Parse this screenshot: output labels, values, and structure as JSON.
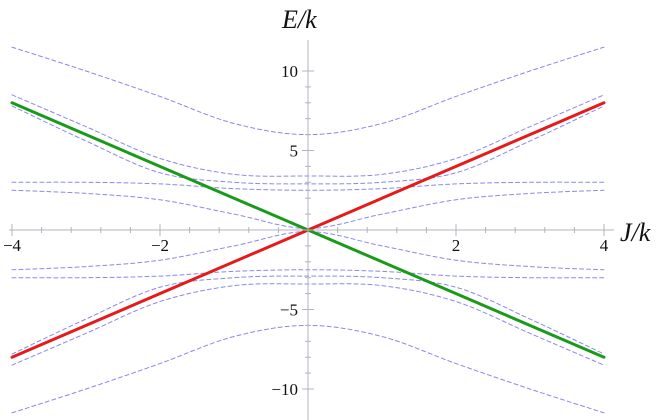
{
  "chart_data": {
    "type": "line",
    "xlabel": "J/k",
    "ylabel": "E/k",
    "xlim": [
      -4,
      4
    ],
    "ylim": [
      -12,
      12
    ],
    "x_ticks": [
      -4,
      -2,
      2,
      4
    ],
    "x_tick_labels": [
      "−4",
      "−2",
      "2",
      "4"
    ],
    "y_ticks": [
      -10,
      -5,
      5,
      10
    ],
    "y_tick_labels": [
      "−10",
      "−5",
      "5",
      "10"
    ],
    "grid": false,
    "legend": "none",
    "series": [
      {
        "style": "solid",
        "color": "#e51a1a",
        "x": [
          -4,
          4
        ],
        "y": [
          -8,
          8
        ]
      },
      {
        "style": "solid",
        "color": "#1a9a1a",
        "x": [
          -4,
          4
        ],
        "y": [
          8,
          -8
        ]
      },
      {
        "style": "dashed",
        "color": "#8888ee",
        "x": [
          -4,
          -3,
          -2,
          -1,
          0,
          1,
          2,
          3,
          4
        ],
        "y": [
          11.5,
          10.0,
          8.4,
          6.7,
          6.0,
          6.7,
          8.4,
          10.0,
          11.5
        ]
      },
      {
        "style": "dashed",
        "color": "#8888ee",
        "x": [
          -4,
          -3,
          -2,
          -1,
          0,
          1,
          2,
          3,
          4
        ],
        "y": [
          -11.5,
          -10.0,
          -8.4,
          -6.7,
          -6.0,
          -6.7,
          -8.4,
          -10.0,
          -11.5
        ]
      },
      {
        "style": "dashed",
        "color": "#8888ee",
        "x": [
          -4,
          -3,
          -2,
          -1,
          0,
          1,
          2,
          3,
          4
        ],
        "y": [
          8.5,
          6.5,
          4.5,
          3.5,
          3.4,
          3.5,
          4.5,
          6.5,
          8.5
        ]
      },
      {
        "style": "dashed",
        "color": "#8888ee",
        "x": [
          -4,
          -3,
          -2,
          -1,
          0,
          1,
          2,
          3,
          4
        ],
        "y": [
          -8.5,
          -6.5,
          -4.5,
          -3.5,
          -3.4,
          -3.5,
          -4.5,
          -6.5,
          -8.5
        ]
      },
      {
        "style": "dashed",
        "color": "#8888ee",
        "x": [
          -4,
          -3,
          -2,
          -1,
          0,
          1,
          2,
          3,
          4
        ],
        "y": [
          7.8,
          5.6,
          3.6,
          3.0,
          2.9,
          3.0,
          3.6,
          5.6,
          7.8
        ]
      },
      {
        "style": "dashed",
        "color": "#8888ee",
        "x": [
          -4,
          -3,
          -2,
          -1,
          0,
          1,
          2,
          3,
          4
        ],
        "y": [
          -7.8,
          -5.6,
          -3.6,
          -3.0,
          -2.9,
          -3.0,
          -3.6,
          -5.6,
          -7.8
        ]
      },
      {
        "style": "dashed",
        "color": "#8888ee",
        "x": [
          -4,
          -3,
          -2,
          -1,
          0,
          1,
          2,
          3,
          4
        ],
        "y": [
          3.0,
          3.0,
          2.9,
          2.6,
          2.5,
          2.6,
          2.9,
          3.0,
          3.0
        ]
      },
      {
        "style": "dashed",
        "color": "#8888ee",
        "x": [
          -4,
          -3,
          -2,
          -1,
          0,
          1,
          2,
          3,
          4
        ],
        "y": [
          -3.0,
          -3.0,
          -2.9,
          -2.6,
          -2.5,
          -2.6,
          -2.9,
          -3.0,
          -3.0
        ]
      },
      {
        "style": "dashed",
        "color": "#8888ee",
        "x": [
          -4,
          -3,
          -2,
          -1,
          0,
          1,
          2,
          3,
          4
        ],
        "y": [
          2.5,
          2.3,
          1.9,
          1.0,
          0.1,
          1.0,
          1.9,
          2.3,
          2.5
        ]
      },
      {
        "style": "dashed",
        "color": "#8888ee",
        "x": [
          -4,
          -3,
          -2,
          -1,
          0,
          1,
          2,
          3,
          4
        ],
        "y": [
          -2.5,
          -2.3,
          -1.9,
          -1.0,
          -0.1,
          -1.0,
          -1.9,
          -2.3,
          -2.5
        ]
      }
    ],
    "axis_color": "#b3b3bf"
  }
}
